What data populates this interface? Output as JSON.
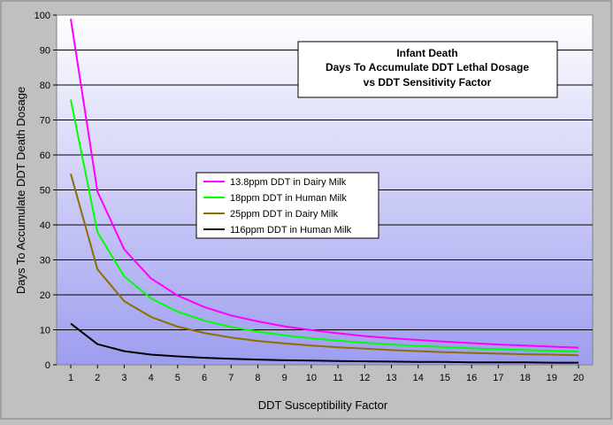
{
  "chart_data": {
    "type": "line",
    "title_lines": [
      "Infant Death",
      "Days To Accumulate DDT Lethal Dosage",
      "vs DDT Sensitivity Factor"
    ],
    "xlabel": "DDT Susceptibility Factor",
    "ylabel": "Days To Accumulate DDT Death Dosage",
    "x": [
      1,
      2,
      3,
      4,
      5,
      6,
      7,
      8,
      9,
      10,
      11,
      12,
      13,
      14,
      15,
      16,
      17,
      18,
      19,
      20
    ],
    "xticks": [
      "1",
      "2",
      "3",
      "4",
      "5",
      "6",
      "7",
      "8",
      "9",
      "10",
      "11",
      "12",
      "13",
      "14",
      "15",
      "16",
      "17",
      "18",
      "19",
      "20"
    ],
    "ylim": [
      0,
      100
    ],
    "yticks": [
      "0",
      "10",
      "20",
      "30",
      "40",
      "50",
      "60",
      "70",
      "80",
      "90",
      "100"
    ],
    "grid": "horizontal",
    "legend_position": "center-left",
    "series": [
      {
        "name": "13.8ppm DDT in Dairy Milk",
        "color": "#ff00ff",
        "values": [
          98.9,
          49.5,
          33.0,
          24.7,
          19.8,
          16.5,
          14.1,
          12.4,
          11.0,
          9.9,
          9.0,
          8.2,
          7.6,
          7.1,
          6.6,
          6.2,
          5.8,
          5.5,
          5.2,
          4.9
        ]
      },
      {
        "name": "18ppm DDT in Human Milk",
        "color": "#00ff00",
        "values": [
          75.8,
          37.9,
          25.3,
          19.0,
          15.2,
          12.6,
          10.8,
          9.5,
          8.4,
          7.6,
          6.9,
          6.3,
          5.8,
          5.4,
          5.1,
          4.7,
          4.5,
          4.2,
          4.0,
          3.8
        ]
      },
      {
        "name": "25ppm DDT in Dairy Milk",
        "color": "#8b7000",
        "values": [
          54.6,
          27.3,
          18.2,
          13.7,
          10.9,
          9.1,
          7.8,
          6.8,
          6.1,
          5.5,
          5.0,
          4.6,
          4.2,
          3.9,
          3.6,
          3.4,
          3.2,
          3.0,
          2.9,
          2.7
        ]
      },
      {
        "name": "116ppm DDT in Human Milk",
        "color": "#000000",
        "values": [
          11.8,
          5.9,
          3.9,
          2.9,
          2.4,
          2.0,
          1.7,
          1.5,
          1.3,
          1.2,
          1.1,
          1.0,
          0.9,
          0.8,
          0.8,
          0.7,
          0.7,
          0.7,
          0.6,
          0.6
        ]
      }
    ]
  }
}
